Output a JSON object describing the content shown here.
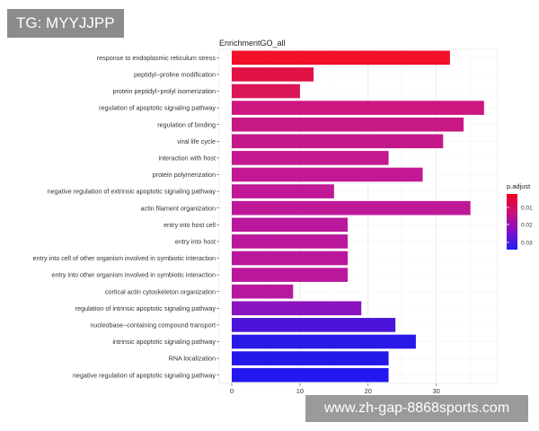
{
  "watermarks": {
    "top": "TG: MYYJJPP",
    "bottom": "www.zh-gap-8868sports.com"
  },
  "chart_data": {
    "type": "bar",
    "orientation": "horizontal",
    "title": "EnrichmentGO_all",
    "xlabel": "",
    "ylabel": "",
    "xlim": [
      0,
      39
    ],
    "x_ticks": [
      0,
      10,
      20,
      30
    ],
    "grid": true,
    "categories": [
      "response to endoplasmic reticulum stress",
      "peptidyl−proline modification",
      "protein peptidyl−prolyl isomerization",
      "regulation of apoptotic signaling pathway",
      "regulation of binding",
      "viral life cycle",
      "interaction with host",
      "protein polymerization",
      "negative regulation of extrinsic apoptotic signaling pathway",
      "actin filament organization",
      "entry into host cell",
      "entry into host",
      "entry into cell of other organism involved in symbiotic interaction",
      "entry into other organism involved in symbiotic interaction",
      "cortical actin cytoskeleton organization",
      "regulation of intrinsic apoptotic signaling pathway",
      "nucleobase−containing compound transport",
      "intrinsic apoptotic signaling pathway",
      "RNA localization",
      "negative regulation of apoptotic signaling pathway"
    ],
    "values": [
      32,
      12,
      10,
      37,
      34,
      31,
      23,
      28,
      15,
      35,
      17,
      17,
      17,
      17,
      9,
      19,
      24,
      27,
      23,
      23
    ],
    "colors": [
      "#f0102a",
      "#e01246",
      "#da1656",
      "#cc1780",
      "#c81884",
      "#c4188a",
      "#c41890",
      "#c21892",
      "#c01896",
      "#be1898",
      "#ba189c",
      "#ba189c",
      "#ba189c",
      "#ba189c",
      "#b8189e",
      "#8a14c0",
      "#4a14dc",
      "#2a1ae8",
      "#2418ea",
      "#2418ee"
    ],
    "legend": {
      "title": "p.adjust",
      "position": "right",
      "ticks": [
        "0.01",
        "0.02",
        "0.03"
      ],
      "gradient": [
        "#f00020",
        "#c8107a",
        "#8010c8",
        "#2020f0"
      ]
    }
  }
}
